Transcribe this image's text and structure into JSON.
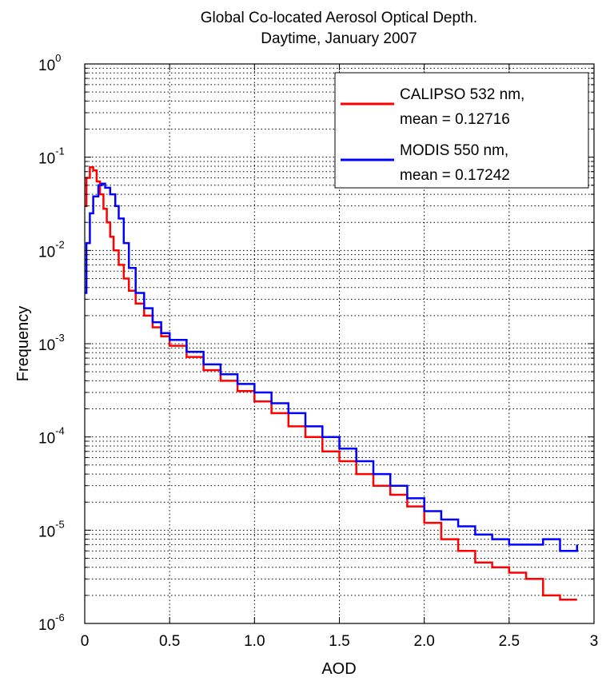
{
  "chart_data": {
    "type": "line",
    "title": "Global Co-located Aerosol Optical Depth.",
    "subtitle": "Daytime, January 2007",
    "xlabel": "AOD",
    "ylabel": "Frequency",
    "xlim": [
      0,
      3
    ],
    "ylim": [
      1e-06,
      1
    ],
    "yscale": "log",
    "grid": true,
    "legend_position": "top-right",
    "x_ticks": [
      "0",
      "0.5",
      "1.0",
      "1.5",
      "2.0",
      "2.5",
      "3"
    ],
    "y_ticks": [
      {
        "base": "10",
        "exp": "-6",
        "value": 1e-06
      },
      {
        "base": "10",
        "exp": "-5",
        "value": 1e-05
      },
      {
        "base": "10",
        "exp": "-4",
        "value": 0.0001
      },
      {
        "base": "10",
        "exp": "-3",
        "value": 0.001
      },
      {
        "base": "10",
        "exp": "-2",
        "value": 0.01
      },
      {
        "base": "10",
        "exp": "-1",
        "value": 0.1
      },
      {
        "base": "10",
        "exp": "0",
        "value": 1
      }
    ],
    "series": [
      {
        "name": "CALIPSO 532 nm,",
        "mean_label": "mean = 0.12716",
        "color": "#ff0000",
        "points": [
          [
            0.0,
            0.03
          ],
          [
            0.01,
            0.06
          ],
          [
            0.03,
            0.078
          ],
          [
            0.05,
            0.072
          ],
          [
            0.07,
            0.055
          ],
          [
            0.09,
            0.04
          ],
          [
            0.11,
            0.028
          ],
          [
            0.13,
            0.02
          ],
          [
            0.15,
            0.014
          ],
          [
            0.17,
            0.01
          ],
          [
            0.2,
            0.007
          ],
          [
            0.23,
            0.005
          ],
          [
            0.26,
            0.0037
          ],
          [
            0.3,
            0.0027
          ],
          [
            0.35,
            0.002
          ],
          [
            0.4,
            0.0015
          ],
          [
            0.45,
            0.0012
          ],
          [
            0.5,
            0.00095
          ],
          [
            0.6,
            0.00072
          ],
          [
            0.7,
            0.00052
          ],
          [
            0.8,
            0.0004
          ],
          [
            0.9,
            0.00031
          ],
          [
            1.0,
            0.00024
          ],
          [
            1.1,
            0.00018
          ],
          [
            1.2,
            0.00013
          ],
          [
            1.3,
            0.0001
          ],
          [
            1.4,
            7e-05
          ],
          [
            1.5,
            5.5e-05
          ],
          [
            1.6,
            4e-05
          ],
          [
            1.7,
            3e-05
          ],
          [
            1.8,
            2.4e-05
          ],
          [
            1.9,
            1.8e-05
          ],
          [
            2.0,
            1.2e-05
          ],
          [
            2.1,
            8e-06
          ],
          [
            2.2,
            6e-06
          ],
          [
            2.3,
            4.5e-06
          ],
          [
            2.4,
            4e-06
          ],
          [
            2.5,
            3.5e-06
          ],
          [
            2.6,
            3e-06
          ],
          [
            2.7,
            2e-06
          ],
          [
            2.8,
            1.8e-06
          ],
          [
            2.9,
            1.8e-06
          ]
        ]
      },
      {
        "name": "MODIS 550 nm,",
        "mean_label": "mean = 0.17242",
        "color": "#0000ff",
        "points": [
          [
            0.0,
            0.0035
          ],
          [
            0.01,
            0.012
          ],
          [
            0.03,
            0.025
          ],
          [
            0.05,
            0.038
          ],
          [
            0.08,
            0.05
          ],
          [
            0.1,
            0.052
          ],
          [
            0.12,
            0.047
          ],
          [
            0.15,
            0.04
          ],
          [
            0.18,
            0.03
          ],
          [
            0.2,
            0.022
          ],
          [
            0.23,
            0.012
          ],
          [
            0.26,
            0.0065
          ],
          [
            0.3,
            0.0035
          ],
          [
            0.35,
            0.0024
          ],
          [
            0.4,
            0.0017
          ],
          [
            0.45,
            0.0013
          ],
          [
            0.5,
            0.0011
          ],
          [
            0.6,
            0.00082
          ],
          [
            0.7,
            0.0006
          ],
          [
            0.8,
            0.00047
          ],
          [
            0.9,
            0.00037
          ],
          [
            1.0,
            0.0003
          ],
          [
            1.1,
            0.00023
          ],
          [
            1.2,
            0.00018
          ],
          [
            1.3,
            0.00013
          ],
          [
            1.4,
            0.0001
          ],
          [
            1.5,
            7.5e-05
          ],
          [
            1.6,
            5.5e-05
          ],
          [
            1.7,
            4e-05
          ],
          [
            1.8,
            3e-05
          ],
          [
            1.9,
            2.2e-05
          ],
          [
            2.0,
            1.6e-05
          ],
          [
            2.1,
            1.3e-05
          ],
          [
            2.2,
            1.1e-05
          ],
          [
            2.3,
            9e-06
          ],
          [
            2.4,
            8e-06
          ],
          [
            2.5,
            7e-06
          ],
          [
            2.6,
            7e-06
          ],
          [
            2.7,
            8e-06
          ],
          [
            2.8,
            6e-06
          ],
          [
            2.9,
            7e-06
          ]
        ]
      }
    ]
  }
}
